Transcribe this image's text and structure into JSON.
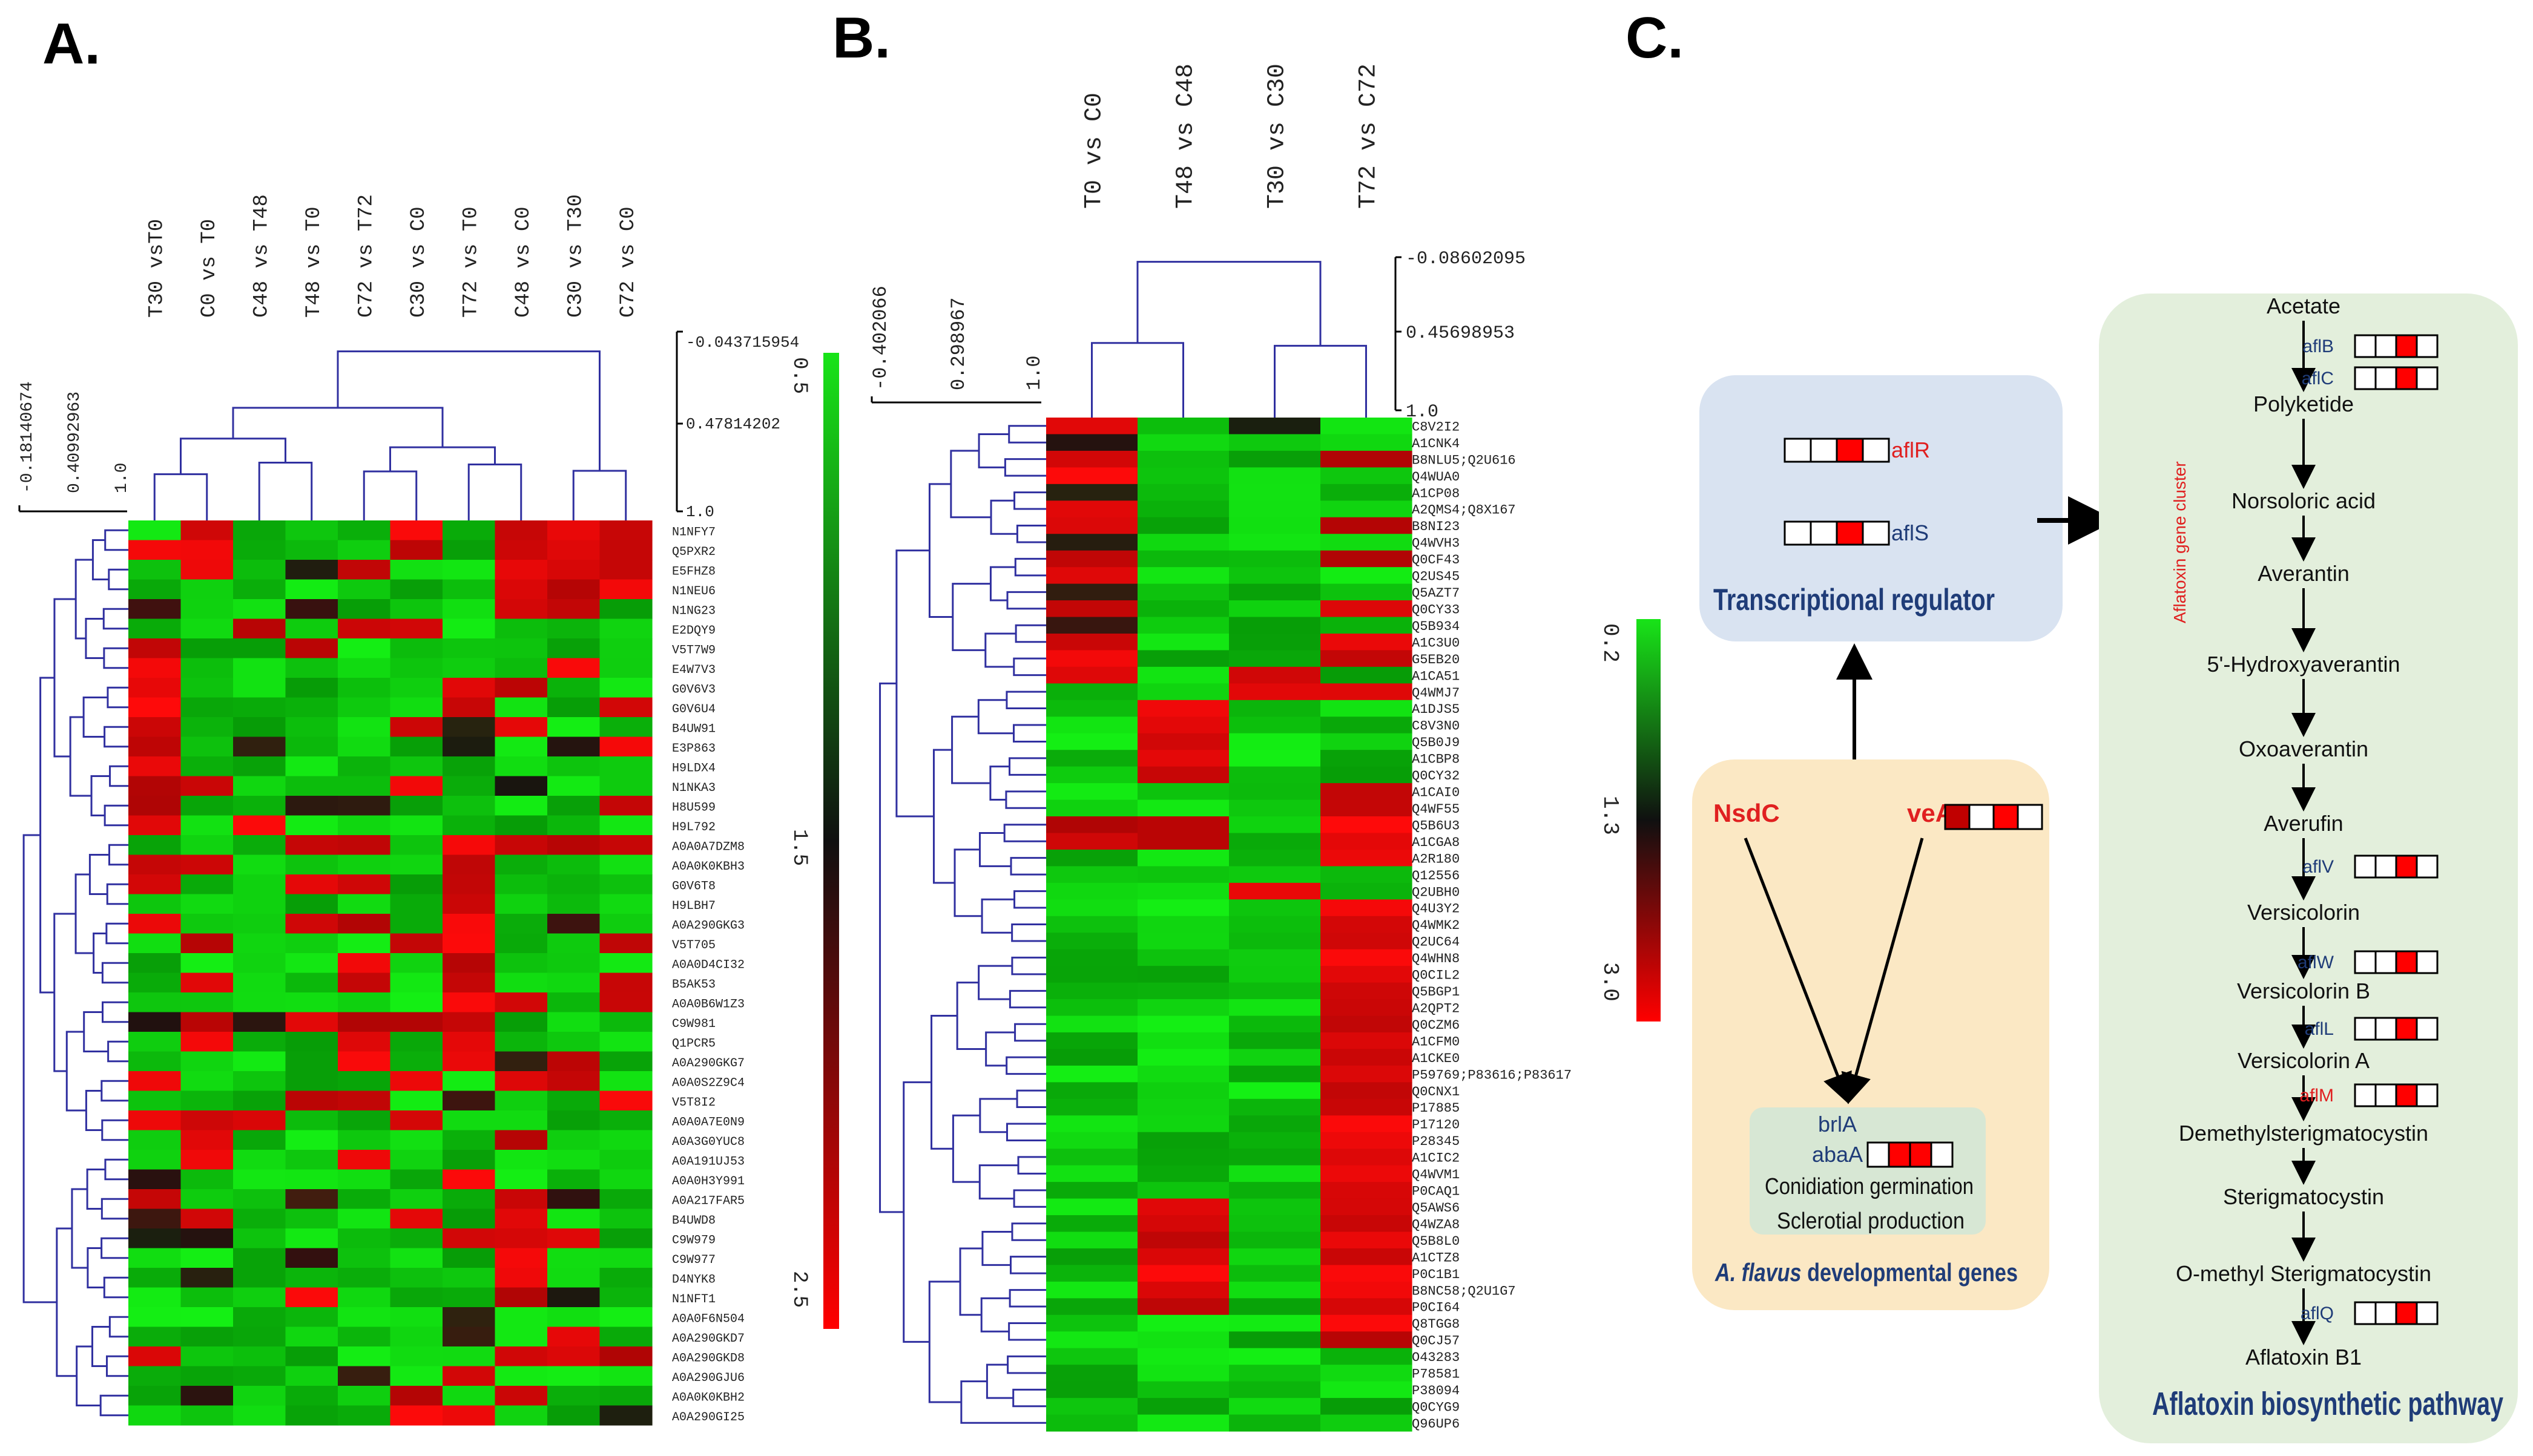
{
  "panels": {
    "a": {
      "letter": "A.",
      "heatmap": {
        "cols": [
          "T30 vsT0",
          "C0 vs T0",
          "C48 vs T48",
          "T48 vs T0",
          "C72 vs T72",
          "C30 vs C0",
          "T72 vs T0",
          "C48 vs C0",
          "C30 vs T30",
          "C72 vs C0"
        ],
        "rows": [
          "N1NFY7",
          "Q5PXR2",
          "E5FHZ8",
          "N1NEU6",
          "N1NG23",
          "E2DQY9",
          "V5T7W9",
          "E4W7V3",
          "G0V6V3",
          "G0V6U4",
          "B4UW91",
          "E3P863",
          "H9LDX4",
          "N1NKA3",
          "H8U599",
          "H9L792",
          "A0A0A7DZM8",
          "A0A0K0KBH3",
          "G0V6T8",
          "H9LBH7",
          "A0A290GKG3",
          "V5T705",
          "A0A0D4CI32",
          "B5AK53",
          "A0A0B6W1Z3",
          "C9W981",
          "Q1PCR5",
          "A0A290GKG7",
          "A0A0S2Z9C4",
          "V5T8I2",
          "A0A0A7E0N9",
          "A0A3G0YUC8",
          "A0A191UJ53",
          "A0A0H3Y991",
          "A0A217FAR5",
          "B4UWD8",
          "C9W979",
          "C9W977",
          "D4NYK8",
          "N1NFT1",
          "A0A0F6N504",
          "A0A290GKD7",
          "A0A290GKD8",
          "A0A290GJU6",
          "A0A0K0KBH2",
          "A0A290GI25"
        ],
        "colScale": [
          "-0.043715954",
          "0.47814202",
          "1.0"
        ],
        "rowScale": [
          "-0.18140674",
          "0.40992963",
          "1.0"
        ]
      },
      "colorbar": {
        "ticks": [
          "0.5",
          "1.5",
          "2.5"
        ]
      }
    },
    "b": {
      "letter": "B.",
      "heatmap": {
        "cols": [
          "T0 vs C0",
          "T48 vs C48",
          "T30 vs C30",
          "T72 vs C72"
        ],
        "rows": [
          "C8V2I2",
          "A1CNK4",
          "B8NLU5;Q2U616",
          "Q4WUA0",
          "A1CP08",
          "A2QMS4;Q8X167",
          "B8NI23",
          "Q4WVH3",
          "Q0CF43",
          "Q2US45",
          "Q5AZT7",
          "Q0CY33",
          "Q5B934",
          "A1C3U0",
          "G5EB20",
          "A1CA51",
          "Q4WMJ7",
          "A1DJS5",
          "C8V3N0",
          "Q5B0J9",
          "A1CBP8",
          "Q0CY32",
          "A1CAI0",
          "Q4WF55",
          "Q5B6U3",
          "A1CGA8",
          "A2R180",
          "Q12556",
          "Q2UBH0",
          "Q4U3Y2",
          "Q4WMK2",
          "Q2UC64",
          "Q4WHN8",
          "Q0CIL2",
          "Q5BGP1",
          "A2QPT2",
          "Q0CZM6",
          "A1CFM0",
          "A1CKE0",
          "P59769;P83616;P83617",
          "Q0CNX1",
          "P17885",
          "P17120",
          "P28345",
          "A1CIC2",
          "Q4WVM1",
          "P0CAQ1",
          "Q5AWS6",
          "Q4WZA8",
          "Q5B8L0",
          "A1CTZ8",
          "P0C1B1",
          "B8NC58;Q2U1G7",
          "P0CI64",
          "Q8TGG8",
          "Q0CJ57",
          "O43283",
          "P78581",
          "P38094",
          "Q0CYG9",
          "Q96UP6"
        ],
        "colScale": [
          "-0.08602095",
          "0.45698953",
          "1.0"
        ],
        "rowScale": [
          "-0.402066",
          "0.298967",
          "1.0"
        ]
      },
      "colorbar": {
        "ticks": [
          "0.2",
          "1.3",
          "3.0"
        ]
      }
    },
    "c": {
      "letter": "C.",
      "regulator": {
        "gene1": "aflR",
        "gene2": "aflS",
        "title": "Transcriptional regulator"
      },
      "developmental": {
        "gene1": "NsdC",
        "gene2": "veA",
        "gene3": "brlA",
        "gene4": "abaA",
        "text1": "Conidiation germination",
        "text2": "Sclerotial production",
        "species": "A. flavus",
        "title_rest": " developmental  genes"
      },
      "pathway": {
        "cluster": "Aflatoxin gene cluster",
        "steps": [
          "Acetate",
          "Polyketide",
          "Norsoloric acid",
          "Averantin",
          "5'-Hydroxyaverantin",
          "Oxoaverantin",
          "Averufin",
          "Versicolorin",
          "Versicolorin B",
          "Versicolorin A",
          "Demethylsterigmatocystin",
          "Sterigmatocystin",
          "O-methyl Sterigmatocystin",
          "Aflatoxin B1"
        ],
        "genes": [
          "aflB",
          "aflC",
          "aflV",
          "aflW",
          "aflL",
          "aflM",
          "aflQ"
        ],
        "title": "Aflatoxin biosynthetic pathway"
      }
    }
  },
  "colors": {
    "green": "#18e418",
    "dark": "#101010",
    "red": "#ff0000",
    "regBox": "#d9e3f1",
    "devBox": "#fbe8c4",
    "pathBox": "#e3efdc",
    "navy": "#1f3c78",
    "geneRed": "#e02020"
  }
}
